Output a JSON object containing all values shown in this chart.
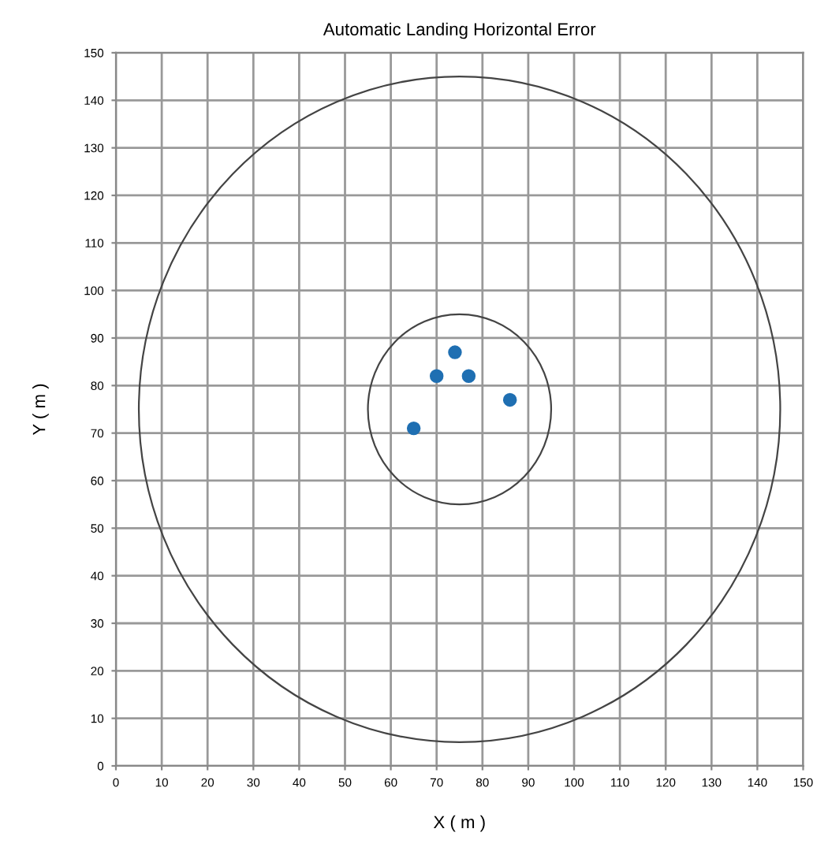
{
  "chart_data": {
    "type": "scatter",
    "title": "Automatic Landing Horizontal Error",
    "xlabel": "X ( m )",
    "ylabel": "Y ( m )",
    "xlim": [
      0,
      150
    ],
    "ylim": [
      0,
      150
    ],
    "xticks": [
      0,
      10,
      20,
      30,
      40,
      50,
      60,
      70,
      80,
      90,
      100,
      110,
      120,
      130,
      140,
      150
    ],
    "yticks": [
      0,
      10,
      20,
      30,
      40,
      50,
      60,
      70,
      80,
      90,
      100,
      110,
      120,
      130,
      140,
      150
    ],
    "grid": true,
    "series": [
      {
        "color": "#1f6fb2",
        "marker": "circle",
        "x": [
          74,
          70,
          77,
          86,
          65
        ],
        "values": [
          87,
          82,
          82,
          77,
          71
        ]
      }
    ]
  }
}
